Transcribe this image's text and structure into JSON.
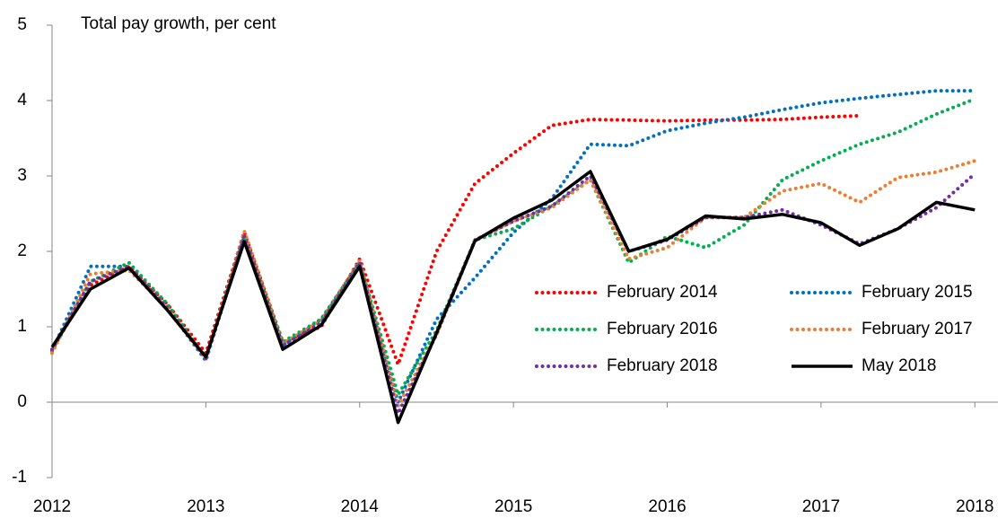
{
  "chart_data": {
    "type": "line",
    "title": "Total pay growth, per cent",
    "x": [
      2012,
      2012.25,
      2012.5,
      2012.75,
      2013,
      2013.25,
      2013.5,
      2013.75,
      2014,
      2014.25,
      2014.5,
      2014.75,
      2015,
      2015.25,
      2015.5,
      2015.75,
      2016,
      2016.25,
      2016.5,
      2016.75,
      2017,
      2017.25,
      2017.5,
      2017.75,
      2018
    ],
    "series": [
      {
        "name": "February 2014",
        "color": "#ff0000",
        "dash": "dotted",
        "values": [
          0.7,
          1.55,
          1.8,
          1.3,
          0.65,
          2.25,
          0.8,
          1.0,
          1.9,
          0.5,
          2.0,
          2.9,
          3.3,
          3.67,
          3.75,
          3.74,
          3.73,
          3.74,
          3.74,
          3.75,
          3.78,
          3.8,
          null,
          null,
          null
        ]
      },
      {
        "name": "February 2015",
        "color": "#0070c0",
        "dash": "dotted",
        "values": [
          0.68,
          1.8,
          1.8,
          1.25,
          0.55,
          2.2,
          0.75,
          1.1,
          1.85,
          0.0,
          1.1,
          1.65,
          2.25,
          2.7,
          3.42,
          3.4,
          3.6,
          3.7,
          3.78,
          3.88,
          3.97,
          4.03,
          4.08,
          4.13,
          4.13
        ]
      },
      {
        "name": "February 2016",
        "color": "#00b050",
        "dash": "dotted",
        "values": [
          0.68,
          1.6,
          1.85,
          1.3,
          0.58,
          2.22,
          0.8,
          1.1,
          1.85,
          0.1,
          0.95,
          2.15,
          2.3,
          2.6,
          2.95,
          1.85,
          2.2,
          2.05,
          2.35,
          2.95,
          3.2,
          3.42,
          3.58,
          3.82,
          4.02
        ]
      },
      {
        "name": "February 2017",
        "color": "#ed7d31",
        "dash": "dotted",
        "values": [
          0.65,
          1.7,
          1.75,
          1.25,
          0.57,
          2.27,
          0.78,
          1.08,
          1.88,
          -0.05,
          0.9,
          2.15,
          2.4,
          2.58,
          2.95,
          1.9,
          2.05,
          2.45,
          2.45,
          2.8,
          2.9,
          2.65,
          2.98,
          3.05,
          3.2
        ]
      },
      {
        "name": "February 2018",
        "color": "#7030a0",
        "dash": "dotted",
        "values": [
          0.7,
          1.6,
          1.8,
          1.25,
          0.58,
          2.2,
          0.75,
          1.05,
          1.85,
          -0.15,
          0.9,
          2.15,
          2.4,
          2.6,
          3.0,
          2.0,
          2.15,
          2.45,
          2.45,
          2.55,
          2.35,
          2.1,
          2.3,
          2.58,
          3.03
        ]
      },
      {
        "name": "May 2018",
        "color": "#000000",
        "dash": "solid",
        "values": [
          0.73,
          1.5,
          1.78,
          1.22,
          0.6,
          2.13,
          0.7,
          1.02,
          1.8,
          -0.27,
          0.92,
          2.14,
          2.44,
          2.68,
          3.06,
          2.0,
          2.16,
          2.47,
          2.43,
          2.49,
          2.38,
          2.08,
          2.3,
          2.65,
          2.55
        ]
      }
    ],
    "xlim": [
      2012,
      2018.15
    ],
    "xticks": [
      2012,
      2013,
      2014,
      2015,
      2016,
      2017,
      2018
    ],
    "ylim": [
      -1,
      5
    ],
    "yticks": [
      -1,
      0,
      1,
      2,
      3,
      4,
      5
    ],
    "grid": false,
    "legend": "lower right"
  }
}
